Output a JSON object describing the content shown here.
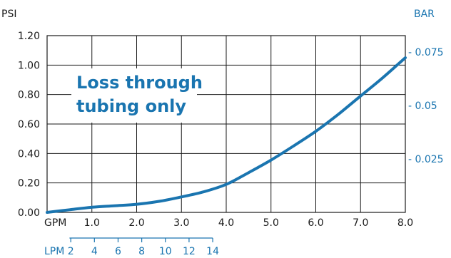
{
  "colors": {
    "blue": "#1a75b0",
    "black": "#1a1a1a",
    "grid": "#1a1a1a",
    "bg": "#ffffff"
  },
  "chart_data": {
    "type": "line",
    "title": "",
    "annotation": [
      "Loss through",
      "tubing only"
    ],
    "left_axis": {
      "label": "PSI",
      "ticks": [
        0,
        0.2,
        0.4,
        0.6,
        0.8,
        1.0,
        1.2
      ],
      "tick_labels": [
        "0.00",
        "0.20",
        "0.40",
        "0.60",
        "0.80",
        "1.00",
        "1.20"
      ],
      "range": [
        0,
        1.2
      ]
    },
    "right_axis": {
      "label": "BAR",
      "ticks": [
        0.025,
        0.05,
        0.075
      ],
      "tick_labels": [
        "- 0.025",
        "- 0.05",
        "- 0.075"
      ]
    },
    "bottom_axis": {
      "label": "GPM",
      "ticks": [
        1,
        2,
        3,
        4,
        5,
        6,
        7,
        8
      ],
      "tick_labels": [
        "1.0",
        "2.0",
        "3.0",
        "4.0",
        "5.0",
        "6.0",
        "7.0",
        "8.0"
      ],
      "range": [
        0,
        8
      ]
    },
    "lpm_axis": {
      "label": "LPM",
      "ticks": [
        2,
        4,
        6,
        8,
        10,
        12,
        14
      ],
      "tick_labels": [
        "2",
        "4",
        "6",
        "8",
        "10",
        "12",
        "14"
      ]
    },
    "grid": true,
    "series": [
      {
        "x": [
          0,
          0.5,
          1,
          1.5,
          2,
          2.5,
          3,
          3.5,
          4,
          4.5,
          5,
          5.5,
          6,
          6.5,
          7,
          7.5,
          8
        ],
        "y": [
          0,
          0.018,
          0.035,
          0.045,
          0.055,
          0.075,
          0.105,
          0.14,
          0.19,
          0.27,
          0.355,
          0.45,
          0.55,
          0.665,
          0.79,
          0.915,
          1.05
        ]
      }
    ]
  }
}
